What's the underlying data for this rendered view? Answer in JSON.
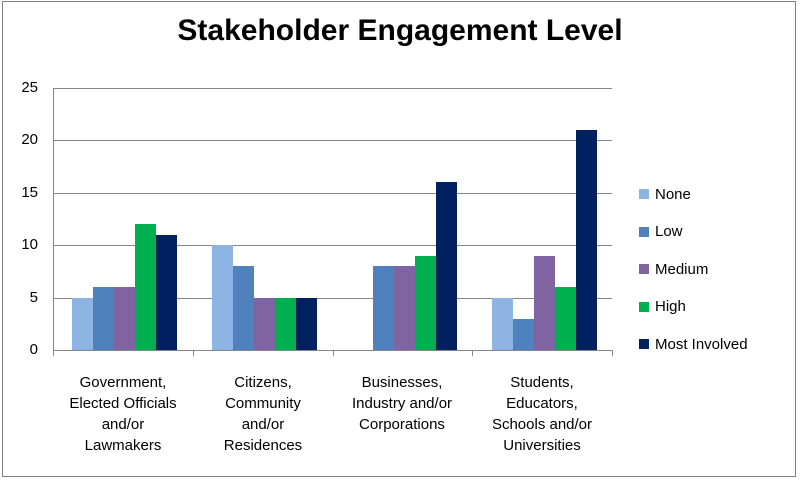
{
  "chart_data": {
    "type": "bar",
    "title": "Stakeholder Engagement Level",
    "xlabel": "",
    "ylabel": "",
    "ylim": [
      0,
      25
    ],
    "yticks": [
      0,
      5,
      10,
      15,
      20,
      25
    ],
    "grid": true,
    "legend_position": "right",
    "categories": [
      "Government, Elected Officials and/or Lawmakers",
      "Citizens, Community and/or Residences",
      "Businesses, Industry and/or Corporations",
      "Students, Educators, Schools and/or Universities"
    ],
    "category_labels_wrapped": [
      "Government,\nElected Officials\nand/or\nLawmakers",
      "Citizens,\nCommunity\nand/or\nResidences",
      "Businesses,\nIndustry and/or\nCorporations",
      "Students,\nEducators,\nSchools and/or\nUniversities"
    ],
    "series": [
      {
        "name": "None",
        "color": "#8eb4e3",
        "values": [
          5,
          10,
          0,
          5
        ]
      },
      {
        "name": "Low",
        "color": "#4f81bd",
        "values": [
          6,
          8,
          8,
          3
        ]
      },
      {
        "name": "Medium",
        "color": "#8064a2",
        "values": [
          6,
          5,
          8,
          9
        ]
      },
      {
        "name": "High",
        "color": "#00b050",
        "values": [
          12,
          5,
          9,
          6
        ]
      },
      {
        "name": "Most Involved",
        "color": "#002060",
        "values": [
          11,
          5,
          16,
          21
        ]
      }
    ]
  }
}
